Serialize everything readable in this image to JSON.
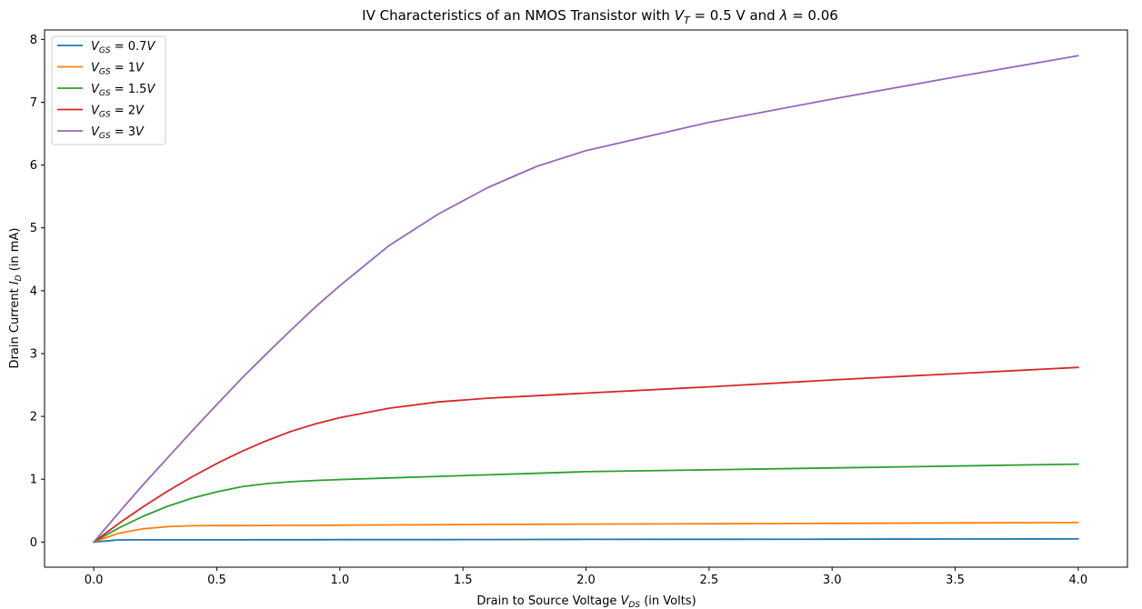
{
  "chart_data": {
    "type": "line",
    "title": {
      "prefix": "IV Characteristics of an NMOS Transistor with ",
      "vt_symbol": "V",
      "vt_sub": "T",
      "vt_value": " = 0.5 V and ",
      "lambda_symbol": "λ",
      "lambda_value": " = 0.06"
    },
    "xlabel": {
      "prefix": "Drain to Source Voltage ",
      "symbol": "V",
      "sub": "DS",
      "suffix": " (in Volts)"
    },
    "ylabel": {
      "prefix": "Drain Current ",
      "symbol": "I",
      "sub": "D",
      "suffix": " (in mA)"
    },
    "xlim": [
      -0.2,
      4.2
    ],
    "ylim": [
      -0.4,
      8.15
    ],
    "xticks": [
      0.0,
      0.5,
      1.0,
      1.5,
      2.0,
      2.5,
      3.0,
      3.5,
      4.0
    ],
    "xtick_labels": [
      "0.0",
      "0.5",
      "1.0",
      "1.5",
      "2.0",
      "2.5",
      "3.0",
      "3.5",
      "4.0"
    ],
    "yticks": [
      0,
      1,
      2,
      3,
      4,
      5,
      6,
      7,
      8
    ],
    "ytick_labels": [
      "0",
      "1",
      "2",
      "3",
      "4",
      "5",
      "6",
      "7",
      "8"
    ],
    "grid": false,
    "legend_position": "top-left",
    "x": [
      0.0,
      0.1,
      0.2,
      0.3,
      0.4,
      0.5,
      0.6,
      0.7,
      0.8,
      0.9,
      1.0,
      1.2,
      1.4,
      1.6,
      1.8,
      2.0,
      2.5,
      3.0,
      3.5,
      4.0
    ],
    "series": [
      {
        "name": "0.7",
        "color": "#1f77b4",
        "values": [
          0,
          0.034,
          0.035,
          0.035,
          0.036,
          0.036,
          0.036,
          0.037,
          0.037,
          0.037,
          0.038,
          0.038,
          0.039,
          0.04,
          0.041,
          0.042,
          0.044,
          0.046,
          0.048,
          0.05
        ]
      },
      {
        "name": "1",
        "color": "#ff7f0e",
        "values": [
          0,
          0.14,
          0.21,
          0.245,
          0.26,
          0.262,
          0.263,
          0.264,
          0.265,
          0.266,
          0.268,
          0.272,
          0.276,
          0.28,
          0.283,
          0.286,
          0.292,
          0.298,
          0.305,
          0.31
        ]
      },
      {
        "name": "1.5",
        "color": "#2ca02c",
        "values": [
          0,
          0.22,
          0.41,
          0.57,
          0.7,
          0.8,
          0.88,
          0.93,
          0.96,
          0.98,
          0.995,
          1.02,
          1.045,
          1.07,
          1.095,
          1.12,
          1.15,
          1.18,
          1.21,
          1.24
        ]
      },
      {
        "name": "2",
        "color": "#d62728",
        "values": [
          0,
          0.29,
          0.56,
          0.81,
          1.04,
          1.25,
          1.44,
          1.61,
          1.76,
          1.88,
          1.98,
          2.13,
          2.23,
          2.29,
          2.33,
          2.37,
          2.47,
          2.58,
          2.68,
          2.78
        ]
      },
      {
        "name": "3",
        "color": "#9467bd",
        "values": [
          0,
          0.46,
          0.91,
          1.34,
          1.77,
          2.19,
          2.6,
          2.99,
          3.37,
          3.74,
          4.08,
          4.72,
          5.22,
          5.64,
          5.98,
          6.23,
          6.68,
          7.05,
          7.4,
          7.74
        ]
      }
    ]
  }
}
